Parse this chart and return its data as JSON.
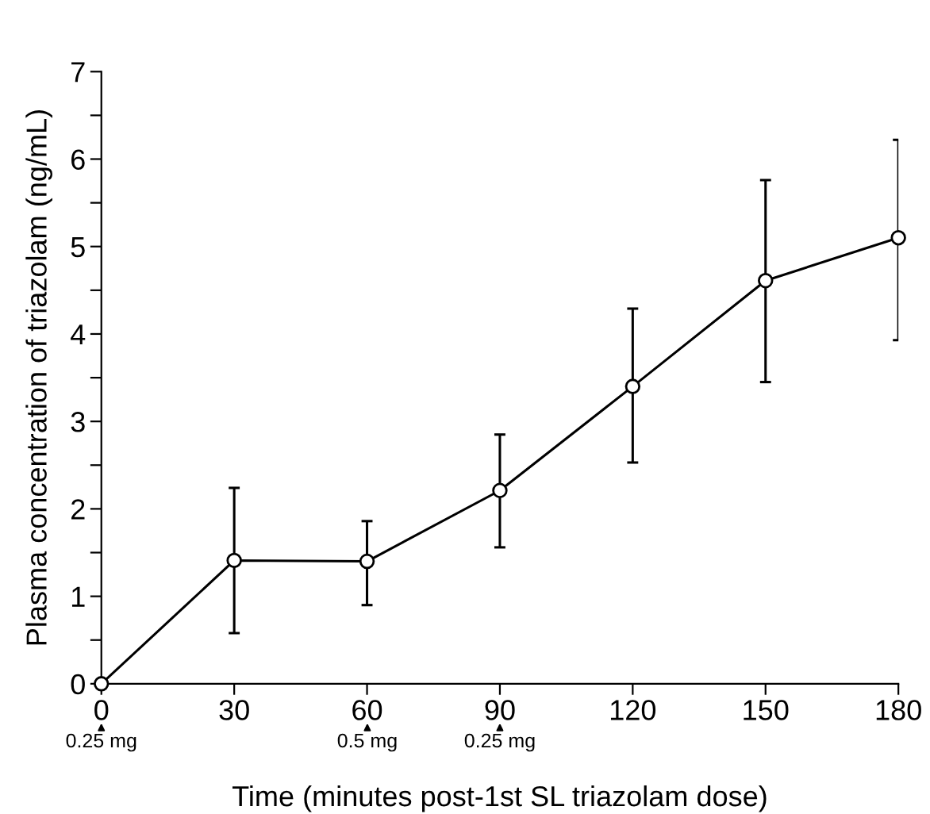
{
  "chart_data": {
    "type": "line",
    "xlabel": "Time (minutes post-1st SL triazolam dose)",
    "ylabel": "Plasma concentration of triazolam (ng/mL)",
    "x": [
      0,
      30,
      60,
      90,
      120,
      150,
      180
    ],
    "values": [
      0,
      1.41,
      1.4,
      2.21,
      3.4,
      4.61,
      5.1
    ],
    "errors": [
      null,
      [
        0.58,
        2.24
      ],
      [
        0.9,
        1.86
      ],
      [
        1.56,
        2.85
      ],
      [
        2.53,
        4.29
      ],
      [
        3.45,
        5.76
      ],
      [
        3.93,
        6.22
      ]
    ],
    "color": "#000000",
    "marker": "circle",
    "line_style": "solid",
    "xlim": [
      0,
      180
    ],
    "xticks": [
      0,
      30,
      60,
      90,
      120,
      150,
      180
    ],
    "ylim": [
      0,
      7
    ],
    "yticks": [
      0,
      {
        "value": 0.5,
        "label": null
      },
      1,
      {
        "value": 1.5,
        "label": null
      },
      2,
      {
        "value": 2.5,
        "label": null
      },
      3,
      {
        "value": 3.5,
        "label": null
      },
      4,
      {
        "value": 4.5,
        "label": null
      },
      5,
      {
        "value": 5.5,
        "label": null
      },
      6,
      {
        "value": 6.5,
        "label": null
      },
      7
    ],
    "grid": false,
    "annotations": [
      "0.25 mg",
      "0.5 mg",
      "0.25 mg"
    ]
  }
}
